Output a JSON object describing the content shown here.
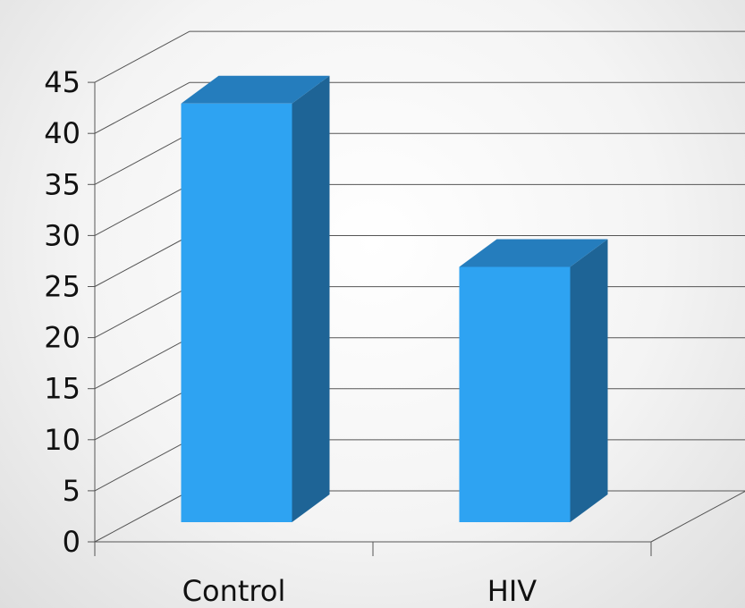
{
  "chart_data": {
    "type": "bar",
    "style": "3d-column",
    "categories": [
      "Control",
      "HIV"
    ],
    "series": [
      {
        "values": [
          41,
          25
        ]
      }
    ],
    "y_ticks": [
      "0",
      "5",
      "10",
      "15",
      "20",
      "25",
      "30",
      "35",
      "40",
      "45"
    ],
    "ylim": [
      0,
      45
    ],
    "grid": true,
    "legend": "none",
    "colors": {
      "bar_front": "#2ea3f2",
      "bar_top": "#257dbd",
      "bar_side": "#1e6496",
      "gridline": "#555555",
      "text": "#111111"
    }
  }
}
